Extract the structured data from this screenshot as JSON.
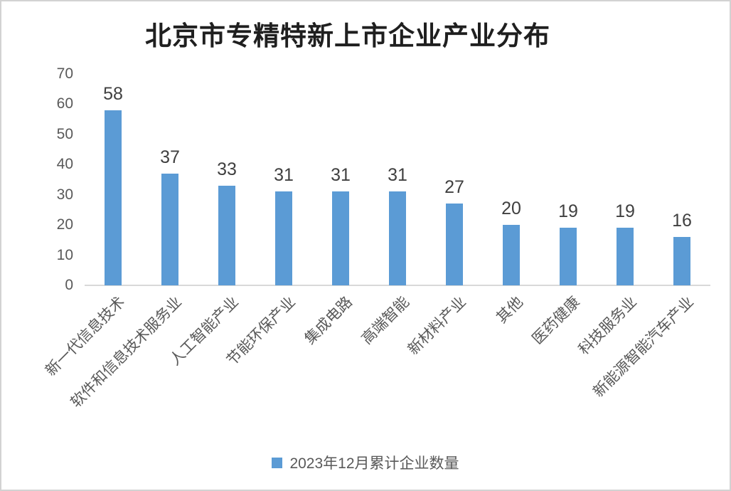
{
  "title": "北京市专精特新上市企业产业分布",
  "legend": {
    "label": "2023年12月累计企业数量",
    "color": "#5B9BD5"
  },
  "chart_data": {
    "type": "bar",
    "title": "北京市专精特新上市企业产业分布",
    "categories": [
      "新一代信息技术",
      "软件和信息技术服务业",
      "人工智能产业",
      "节能环保产业",
      "集成电路",
      "高端智能",
      "新材料产业",
      "其他",
      "医药健康",
      "科技服务业",
      "新能源智能汽车产业"
    ],
    "values": [
      58,
      37,
      33,
      31,
      31,
      31,
      27,
      20,
      19,
      19,
      16
    ],
    "series_name": "2023年12月累计企业数量",
    "xlabel": "",
    "ylabel": "",
    "ylim": [
      0,
      70
    ],
    "yticks": [
      0,
      10,
      20,
      30,
      40,
      50,
      60,
      70
    ],
    "data_labels": [
      58,
      37,
      33,
      31,
      31,
      31,
      27,
      20,
      19,
      19,
      16
    ],
    "bar_color": "#5B9BD5",
    "axis_line_color": "#D9D9D9",
    "gridlines": false,
    "legend_position": "bottom",
    "category_label_rotation_deg": 45
  }
}
